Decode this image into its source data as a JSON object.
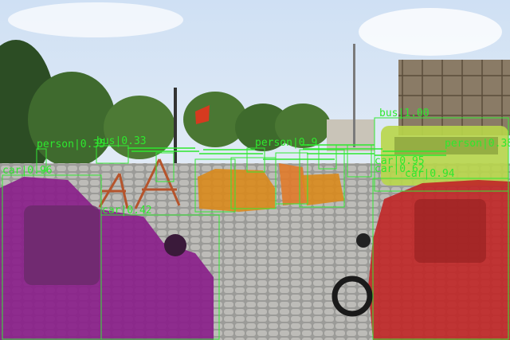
{
  "colors": {
    "box": "#34e834",
    "label": "#2ee82e",
    "car_left": "#8a1f8a",
    "car_right": "#c02828",
    "motorcycle": "#d98a1c",
    "bus": "#b8d64a"
  },
  "detections": [
    {
      "class": "car",
      "score": "0.96",
      "text": "car|0.96"
    },
    {
      "class": "car",
      "score": "0.42",
      "text": "car|0.42"
    },
    {
      "class": "car",
      "score": "0.94",
      "text": "car|0.94"
    },
    {
      "class": "bus",
      "score": "1.00",
      "text": "bus|1.00"
    },
    {
      "class": "bus",
      "score": "0.33",
      "text": "bus|0.33"
    },
    {
      "class": "person",
      "score": "0.38",
      "text": "person|0.38"
    },
    {
      "class": "person",
      "score": "0.35",
      "text": "person|0.35"
    },
    {
      "class": "person",
      "score": "0.9",
      "text": "person|0.9"
    },
    {
      "class": "car",
      "score": "0.95",
      "text": "car|0.95"
    },
    {
      "class": "car",
      "score": "0.62",
      "text": "car|0.62"
    }
  ]
}
